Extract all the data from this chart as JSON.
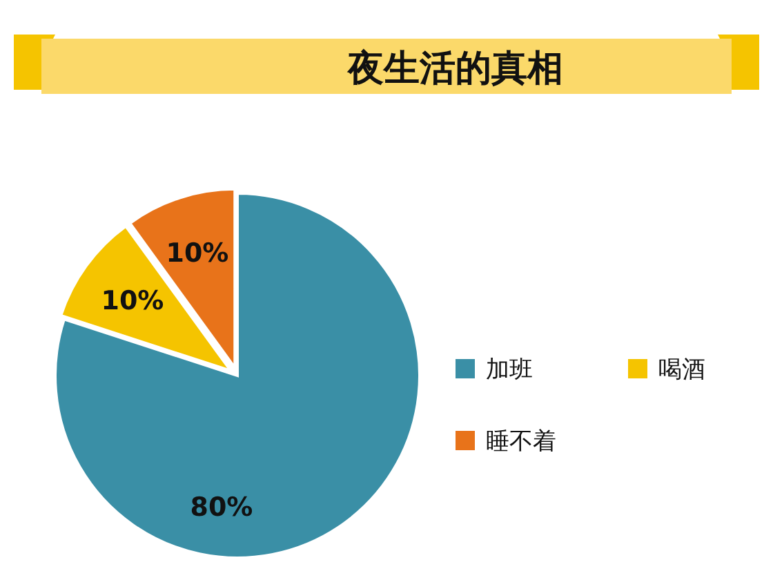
{
  "chart_data": {
    "type": "pie",
    "title": "夜生活的真相",
    "categories": [
      "加班",
      "喝酒",
      "睡不着"
    ],
    "values": [
      80,
      10,
      10
    ],
    "colors": [
      "#3a8fa6",
      "#f5c400",
      "#e8731a"
    ],
    "value_labels": [
      "80%",
      "10%",
      "10%"
    ],
    "legend": "right"
  }
}
